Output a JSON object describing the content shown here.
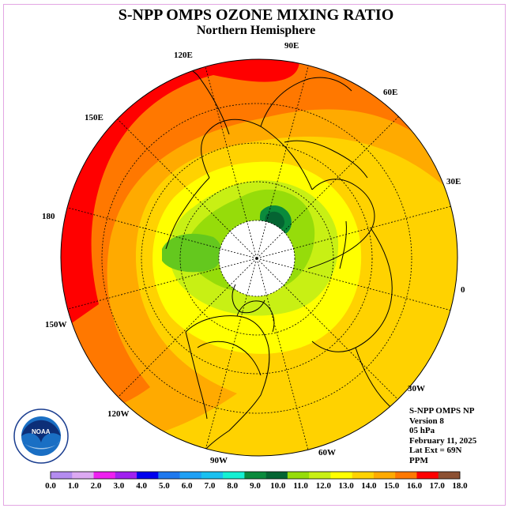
{
  "title": "S-NPP OMPS OZONE MIXING RATIO",
  "subtitle": "Northern Hemisphere",
  "longitude_labels": [
    "90E",
    "60E",
    "30E",
    "0",
    "30W",
    "60W",
    "90W",
    "120W",
    "150W",
    "180",
    "150E",
    "120E"
  ],
  "info": {
    "instrument": "S-NPP OMPS NP",
    "version": "Version 8",
    "level": "05 hPa",
    "date": "February 11, 2025",
    "lat_ext": "Lat Ext = 69N",
    "units": "PPM"
  },
  "logo": {
    "name": "NOAA",
    "ring_text": "NATIONAL OCEANIC AND ATMOSPHERIC ADMINISTRATION · U.S. DEPARTMENT OF COMMERCE"
  },
  "colorbar": {
    "ticks": [
      "0.0",
      "1.0",
      "2.0",
      "3.0",
      "4.0",
      "5.0",
      "6.0",
      "7.0",
      "8.0",
      "9.0",
      "10.0",
      "11.0",
      "12.0",
      "13.0",
      "14.0",
      "15.0",
      "16.0",
      "17.0",
      "18.0"
    ],
    "colors": [
      "#b48cf0",
      "#dca9f2",
      "#ee1ff0",
      "#a020f0",
      "#0000ee",
      "#1e78ee",
      "#1ea0f5",
      "#19c0f0",
      "#14f0d2",
      "#0a8a3c",
      "#046432",
      "#96dc0a",
      "#c8f014",
      "#ffff00",
      "#ffd200",
      "#ffaa00",
      "#ff7800",
      "#ff0000",
      "#8c5032"
    ]
  },
  "colors": {
    "frame_border": "#e3a6e3",
    "coastline": "#000000",
    "graticule": "#000000",
    "missing_data": "#ffffff"
  }
}
